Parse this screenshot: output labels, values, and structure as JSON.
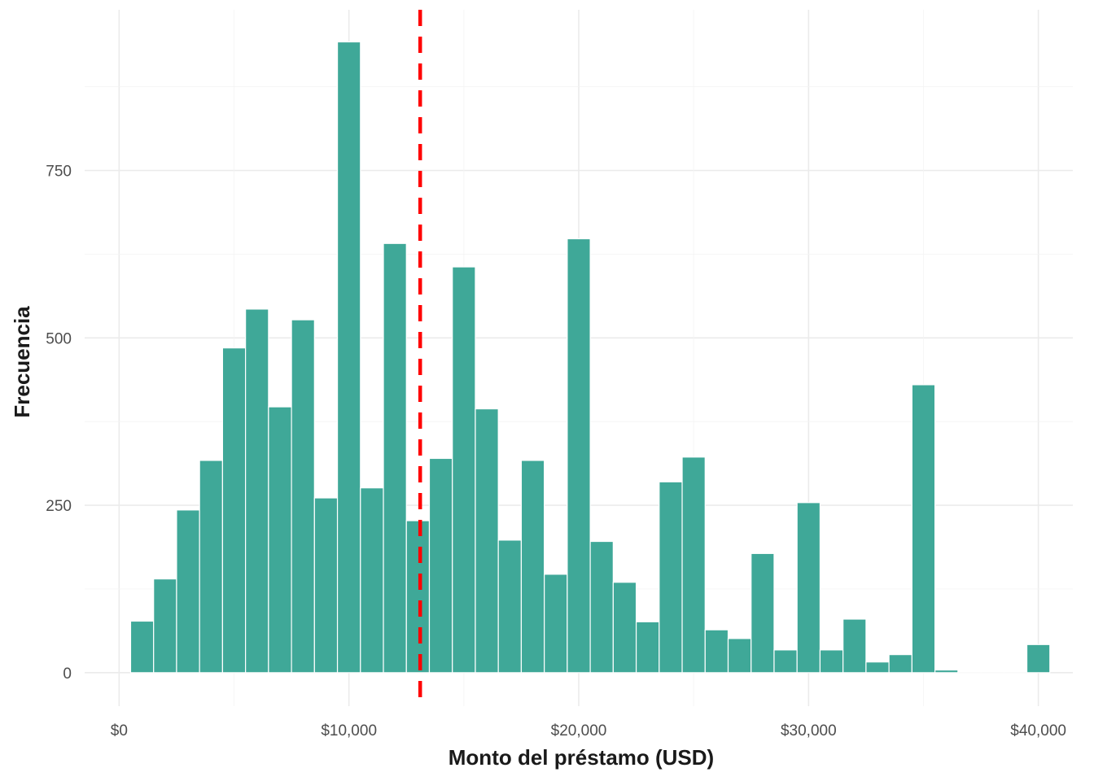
{
  "chart_data": {
    "type": "bar",
    "subtype": "histogram",
    "title": "",
    "xlabel": "Monto del préstamo (USD)",
    "ylabel": "Frecuencia",
    "bin_width": 1000,
    "bins": [
      {
        "start": 500,
        "end": 1500,
        "count": 77
      },
      {
        "start": 1500,
        "end": 2500,
        "count": 140
      },
      {
        "start": 2500,
        "end": 3500,
        "count": 243
      },
      {
        "start": 3500,
        "end": 4500,
        "count": 317
      },
      {
        "start": 4500,
        "end": 5500,
        "count": 485
      },
      {
        "start": 5500,
        "end": 6500,
        "count": 543
      },
      {
        "start": 6500,
        "end": 7500,
        "count": 397
      },
      {
        "start": 7500,
        "end": 8500,
        "count": 527
      },
      {
        "start": 8500,
        "end": 9500,
        "count": 261
      },
      {
        "start": 9500,
        "end": 10500,
        "count": 942
      },
      {
        "start": 10500,
        "end": 11500,
        "count": 276
      },
      {
        "start": 11500,
        "end": 12500,
        "count": 641
      },
      {
        "start": 12500,
        "end": 13500,
        "count": 227
      },
      {
        "start": 13500,
        "end": 14500,
        "count": 320
      },
      {
        "start": 14500,
        "end": 15500,
        "count": 606
      },
      {
        "start": 15500,
        "end": 16500,
        "count": 394
      },
      {
        "start": 16500,
        "end": 17500,
        "count": 198
      },
      {
        "start": 17500,
        "end": 18500,
        "count": 317
      },
      {
        "start": 18500,
        "end": 19500,
        "count": 147
      },
      {
        "start": 19500,
        "end": 20500,
        "count": 648
      },
      {
        "start": 20500,
        "end": 21500,
        "count": 196
      },
      {
        "start": 21500,
        "end": 22500,
        "count": 135
      },
      {
        "start": 22500,
        "end": 23500,
        "count": 76
      },
      {
        "start": 23500,
        "end": 24500,
        "count": 285
      },
      {
        "start": 24500,
        "end": 25500,
        "count": 322
      },
      {
        "start": 25500,
        "end": 26500,
        "count": 64
      },
      {
        "start": 26500,
        "end": 27500,
        "count": 51
      },
      {
        "start": 27500,
        "end": 28500,
        "count": 178
      },
      {
        "start": 28500,
        "end": 29500,
        "count": 34
      },
      {
        "start": 29500,
        "end": 30500,
        "count": 254
      },
      {
        "start": 30500,
        "end": 31500,
        "count": 34
      },
      {
        "start": 31500,
        "end": 32500,
        "count": 80
      },
      {
        "start": 32500,
        "end": 33500,
        "count": 16
      },
      {
        "start": 33500,
        "end": 34500,
        "count": 27
      },
      {
        "start": 34500,
        "end": 35500,
        "count": 430
      },
      {
        "start": 35500,
        "end": 36500,
        "count": 4
      },
      {
        "start": 36500,
        "end": 37500,
        "count": 0
      },
      {
        "start": 37500,
        "end": 38500,
        "count": 0
      },
      {
        "start": 38500,
        "end": 39500,
        "count": 0
      },
      {
        "start": 39500,
        "end": 40500,
        "count": 42
      }
    ],
    "mean_line": {
      "x": 13100,
      "color": "#ff0000",
      "style": "dashed"
    },
    "bar_color": "#3fa898",
    "bar_outline": "#ffffff",
    "xlim": [
      -1500,
      41500
    ],
    "ylim": [
      -50,
      990
    ],
    "x_ticks": [
      {
        "value": 0,
        "label": "$0"
      },
      {
        "value": 10000,
        "label": "$10,000"
      },
      {
        "value": 20000,
        "label": "$20,000"
      },
      {
        "value": 30000,
        "label": "$30,000"
      },
      {
        "value": 40000,
        "label": "$40,000"
      }
    ],
    "y_ticks": [
      {
        "value": 0,
        "label": "0"
      },
      {
        "value": 250,
        "label": "250"
      },
      {
        "value": 500,
        "label": "500"
      },
      {
        "value": 750,
        "label": "750"
      }
    ],
    "grid": true,
    "legend": "none"
  }
}
